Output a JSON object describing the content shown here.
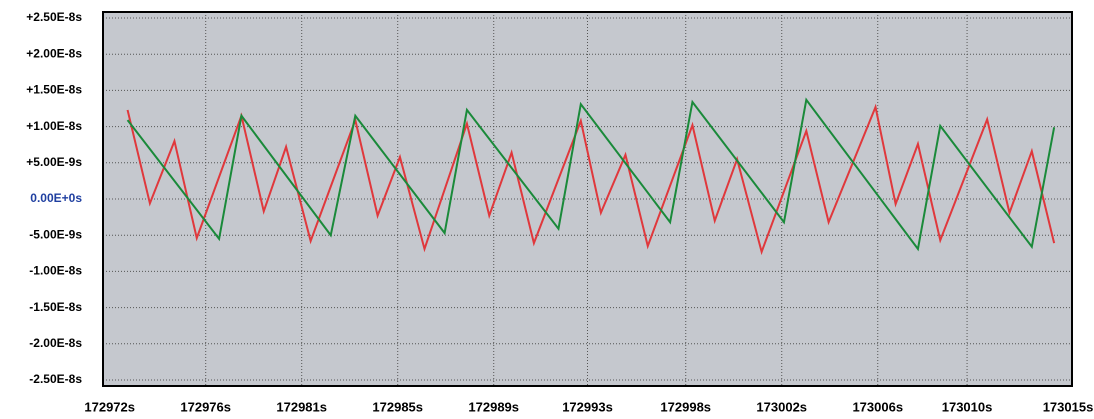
{
  "chart_data": {
    "type": "line",
    "xlim": [
      172971.7,
      173015.1
    ],
    "ylim": [
      -2.5e-08,
      2.5e-08
    ],
    "xticks": [
      {
        "value": 172972,
        "label": "172972s"
      },
      {
        "value": 172976.3,
        "label": "172976s"
      },
      {
        "value": 172980.6,
        "label": "172981s"
      },
      {
        "value": 172984.9,
        "label": "172985s"
      },
      {
        "value": 172989.2,
        "label": "172989s"
      },
      {
        "value": 172993.4,
        "label": "172993s"
      },
      {
        "value": 172997.8,
        "label": "172998s"
      },
      {
        "value": 173002.1,
        "label": "173002s"
      },
      {
        "value": 173006.4,
        "label": "173006s"
      },
      {
        "value": 173010.4,
        "label": "173010s"
      },
      {
        "value": 173015,
        "label": "173015s"
      }
    ],
    "yticks": [
      {
        "value": 2.5e-08,
        "label": "+2.50E-8s"
      },
      {
        "value": 2e-08,
        "label": "+2.00E-8s"
      },
      {
        "value": 1.5e-08,
        "label": "+1.50E-8s"
      },
      {
        "value": 1e-08,
        "label": "+1.00E-8s"
      },
      {
        "value": 5e-09,
        "label": "+5.00E-9s"
      },
      {
        "value": 0,
        "label": "0.00E+0s"
      },
      {
        "value": -5e-09,
        "label": "-5.00E-9s"
      },
      {
        "value": -1e-08,
        "label": "-1.00E-8s"
      },
      {
        "value": -1.5e-08,
        "label": "-1.50E-8s"
      },
      {
        "value": -2e-08,
        "label": "-2.00E-8s"
      },
      {
        "value": -2.5e-08,
        "label": "-2.50E-8s"
      }
    ],
    "grid": true,
    "series": [
      {
        "color": "#e0383c",
        "x": [
          172972.8,
          172973.8,
          172974.9,
          172975.9,
          172977.9,
          172978.9,
          172979.9,
          172981.0,
          172983.0,
          172984.0,
          172985.0,
          172986.1,
          172988.0,
          172989.0,
          172990.0,
          172991.0,
          172993.1,
          172994.0,
          172995.1,
          172996.1,
          172998.1,
          172999.1,
          173000.1,
          173001.2,
          173003.2,
          173004.2,
          173006.3,
          173007.2,
          173008.2,
          173009.2,
          173011.3,
          173012.3,
          173013.3,
          173014.3
        ],
        "values": [
          1.23e-08,
          -6e-10,
          8e-09,
          -5.4e-09,
          1.15e-08,
          -1.7e-09,
          7.2e-09,
          -5.8e-09,
          1.09e-08,
          -2.3e-09,
          5.8e-09,
          -6.9e-09,
          1.04e-08,
          -2.3e-09,
          6.4e-09,
          -6.1e-09,
          1.08e-08,
          -1.9e-09,
          6.1e-09,
          -6.5e-09,
          1.02e-08,
          -3e-09,
          5.5e-09,
          -7.3e-09,
          9.4e-09,
          -3.2e-09,
          1.27e-08,
          -7e-10,
          7.6e-09,
          -5.7e-09,
          1.1e-08,
          -1.9e-09,
          6.6e-09,
          -6.1e-09
        ]
      },
      {
        "color": "#1a8a3a",
        "x": [
          172972.8,
          172976.9,
          172977.9,
          172981.9,
          172983.0,
          172987.0,
          172988.0,
          172992.1,
          172993.1,
          172997.1,
          172998.1,
          173002.2,
          173003.2,
          173008.2,
          173009.2,
          173013.3,
          173014.3
        ],
        "values": [
          1.09e-08,
          -5.5e-09,
          1.15e-08,
          -5e-09,
          1.15e-08,
          -4.7e-09,
          1.23e-08,
          -4.1e-09,
          1.31e-08,
          -3.2e-09,
          1.34e-08,
          -3.2e-09,
          1.37e-08,
          -6.9e-09,
          1.01e-08,
          -6.6e-09,
          9.9e-09
        ]
      }
    ]
  }
}
